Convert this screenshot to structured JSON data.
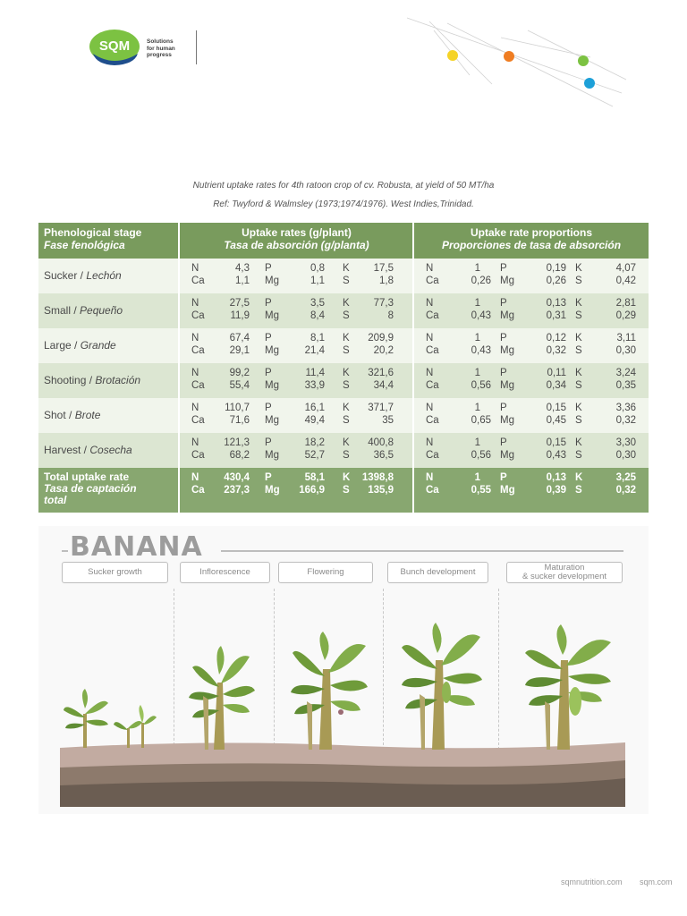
{
  "brand": {
    "logo_text": "SQM",
    "tagline": [
      "Solutions",
      "for human",
      "progress"
    ]
  },
  "caption": {
    "line1": "Nutrient uptake rates for 4th ratoon crop of cv. Robusta, at yield of 50 MT/ha",
    "line2": "Ref: Twyford & Walmsley (1973;1974/1976). West Indies,Trinidad."
  },
  "table": {
    "header": {
      "stage_en": "Phenological stage",
      "stage_es": "Fase fenológica",
      "rates_en": "Uptake rates (g/plant)",
      "rates_es": "Tasa de absorción (g/planta)",
      "props_en": "Uptake rate proportions",
      "props_es": "Proporciones de tasa de absorción"
    },
    "rows": [
      {
        "stage_en": "Sucker / ",
        "stage_es": "Lechón",
        "n": "4,3",
        "p": "0,8",
        "k": "17,5",
        "ca": "1,1",
        "mg": "1,1",
        "s": "1,8",
        "pn": "1",
        "pp": "0,19",
        "pk": "4,07",
        "pca": "0,26",
        "pmg": "0,26",
        "ps": "0,42"
      },
      {
        "stage_en": "Small / ",
        "stage_es": "Pequeño",
        "n": "27,5",
        "p": "3,5",
        "k": "77,3",
        "ca": "11,9",
        "mg": "8,4",
        "s": "8",
        "pn": "1",
        "pp": "0,13",
        "pk": "2,81",
        "pca": "0,43",
        "pmg": "0,31",
        "ps": "0,29"
      },
      {
        "stage_en": "Large / ",
        "stage_es": "Grande",
        "n": "67,4",
        "p": "8,1",
        "k": "209,9",
        "ca": "29,1",
        "mg": "21,4",
        "s": "20,2",
        "pn": "1",
        "pp": "0,12",
        "pk": "3,11",
        "pca": "0,43",
        "pmg": "0,32",
        "ps": "0,30"
      },
      {
        "stage_en": "Shooting / ",
        "stage_es": "Brotación",
        "n": "99,2",
        "p": "11,4",
        "k": "321,6",
        "ca": "55,4",
        "mg": "33,9",
        "s": "34,4",
        "pn": "1",
        "pp": "0,11",
        "pk": "3,24",
        "pca": "0,56",
        "pmg": "0,34",
        "ps": "0,35"
      },
      {
        "stage_en": "Shot / ",
        "stage_es": "Brote",
        "n": "110,7",
        "p": "16,1",
        "k": "371,7",
        "ca": "71,6",
        "mg": "49,4",
        "s": "35",
        "pn": "1",
        "pp": "0,15",
        "pk": "3,36",
        "pca": "0,65",
        "pmg": "0,45",
        "ps": "0,32"
      },
      {
        "stage_en": "Harvest / ",
        "stage_es": "Cosecha",
        "n": "121,3",
        "p": "18,2",
        "k": "400,8",
        "ca": "68,2",
        "mg": "52,7",
        "s": "36,5",
        "pn": "1",
        "pp": "0,15",
        "pk": "3,30",
        "pca": "0,56",
        "pmg": "0,43",
        "ps": "0,30"
      }
    ],
    "total": {
      "label_en": "Total uptake rate",
      "label_es_1": "Tasa de captación",
      "label_es_2": "total",
      "n": "430,4",
      "p": "58,1",
      "k": "1398,8",
      "ca": "237,3",
      "mg": "166,9",
      "s": "135,9",
      "pn": "1",
      "pp": "0,13",
      "pk": "3,25",
      "pca": "0,55",
      "pmg": "0,39",
      "ps": "0,32"
    },
    "symbols": {
      "n": "N",
      "p": "P",
      "k": "K",
      "ca": "Ca",
      "mg": "Mg",
      "s": "S"
    }
  },
  "infographic": {
    "title": "BANANA",
    "stages": [
      "Sucker growth",
      "Inflorescence",
      "Flowering",
      "Bunch development",
      "Maturation",
      "& sucker development"
    ]
  },
  "footer": {
    "link1": "sqmnutrition.com",
    "link2": "sqm.com"
  },
  "colors": {
    "header_green": "#799b5d",
    "total_green": "#88a770",
    "row_light": "#f1f5ec",
    "row_dark": "#dce6d2",
    "dot_yellow": "#f5d327",
    "dot_orange": "#ef7d22",
    "dot_green": "#7cc242",
    "dot_blue": "#1da0d8"
  }
}
